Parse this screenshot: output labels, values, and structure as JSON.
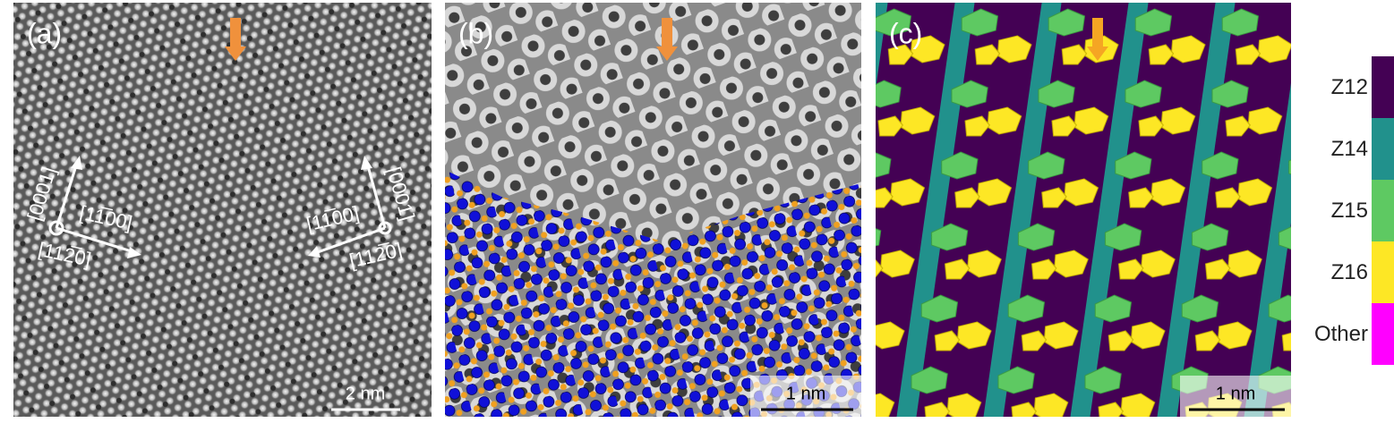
{
  "panels": [
    {
      "label": "(a)",
      "scale_bar": "2 nm",
      "directions": [
        "[0001]",
        "[11̅00]",
        "[112̅0]",
        "[0001]",
        "[11̅00]",
        "[112̅0]"
      ]
    },
    {
      "label": "(b)",
      "scale_bar": "1 nm"
    },
    {
      "label": "(c)",
      "scale_bar": "1 nm"
    }
  ],
  "legend": [
    {
      "label": "Z12",
      "color": "#440154"
    },
    {
      "label": "Z14",
      "color": "#21918c"
    },
    {
      "label": "Z15",
      "color": "#5ec962"
    },
    {
      "label": "Z16",
      "color": "#fde725"
    },
    {
      "label": "Other",
      "color": "#ff00ff"
    }
  ]
}
